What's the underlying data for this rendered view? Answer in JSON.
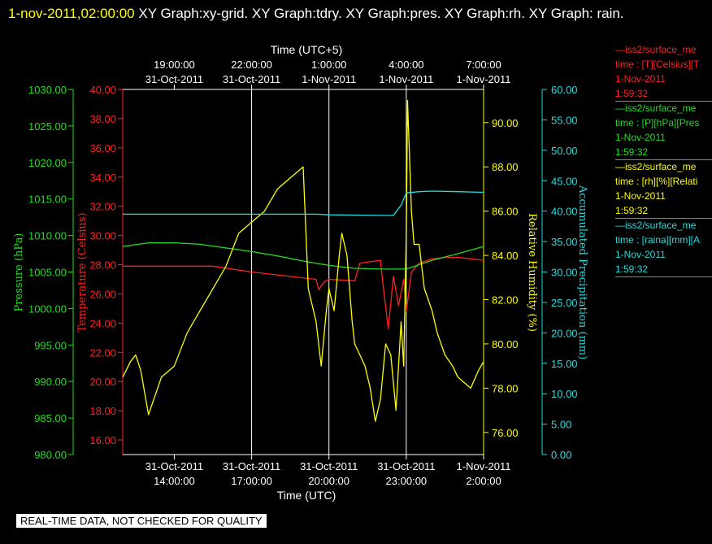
{
  "title": {
    "date": "1-nov-2011,02:00:00",
    "rest": " XY Graph:xy-grid.  XY Graph:tdry.  XY Graph:pres.  XY Graph:rh.  XY Graph: rain."
  },
  "notice": "REAL-TIME DATA, NOT CHECKED FOR QUALITY",
  "colors": {
    "temperature": "#ff2020",
    "pressure": "#22dd22",
    "rh": "#ffff00",
    "precip": "#22dddd",
    "grid": "#ffffff"
  },
  "legend": [
    {
      "line1": "—iss2/surface_me",
      "line2": "time : [T][Celsius][T",
      "line3": "1-Nov-2011",
      "line4": "1:59:32",
      "color": "#ff2020"
    },
    {
      "line1": "—iss2/surface_me",
      "line2": "time : [P][hPa][Pres",
      "line3": "1-Nov-2011",
      "line4": "1:59:32",
      "color": "#22dd22"
    },
    {
      "line1": "—iss2/surface_me",
      "line2": "time : [rh][%][Relati",
      "line3": "1-Nov-2011",
      "line4": "1:59:32",
      "color": "#ffff00"
    },
    {
      "line1": "—iss2/surface_me",
      "line2": "time : [raina][mm][A",
      "line3": "1-Nov-2011",
      "line4": "1:59:32",
      "color": "#22dddd"
    }
  ],
  "chart_data": {
    "type": "line",
    "xlabel_bottom": "Time (UTC)",
    "xlabel_top": "Time (UTC+5)",
    "x_range_hours": [
      12.0,
      26.0
    ],
    "x_ticks_bottom": [
      {
        "h": 14,
        "date": "31-Oct-2011",
        "time": "14:00:00"
      },
      {
        "h": 17,
        "date": "31-Oct-2011",
        "time": "17:00:00"
      },
      {
        "h": 20,
        "date": "31-Oct-2011",
        "time": "20:00:00"
      },
      {
        "h": 23,
        "date": "31-Oct-2011",
        "time": "23:00:00"
      },
      {
        "h": 26,
        "date": "1-Nov-2011",
        "time": "2:00:00"
      }
    ],
    "x_ticks_top": [
      {
        "h": 14,
        "time": "19:00:00",
        "date": "31-Oct-2011"
      },
      {
        "h": 17,
        "time": "22:00:00",
        "date": "31-Oct-2011"
      },
      {
        "h": 20,
        "time": "1:00:00",
        "date": "1-Nov-2011"
      },
      {
        "h": 23,
        "time": "4:00:00",
        "date": "1-Nov-2011"
      },
      {
        "h": 26,
        "time": "7:00:00",
        "date": "1-Nov-2011"
      }
    ],
    "axes": {
      "pressure": {
        "label": "Pressure (hPa)",
        "min": 980,
        "max": 1030,
        "ticks": [
          "980.00",
          "985.00",
          "990.00",
          "995.00",
          "1000.00",
          "1005.00",
          "1010.00",
          "1015.00",
          "1020.00",
          "1025.00",
          "1030.00"
        ]
      },
      "temperature": {
        "label": "Temperature (Celsius)",
        "min": 15,
        "max": 40,
        "ticks": [
          "16.00",
          "18.00",
          "20.00",
          "22.00",
          "24.00",
          "26.00",
          "28.00",
          "30.00",
          "32.00",
          "34.00",
          "36.00",
          "38.00",
          "40.00"
        ]
      },
      "rh": {
        "label": "Relative Humidity (%)",
        "min": 75,
        "max": 91.5,
        "ticks": [
          "76.00",
          "78.00",
          "80.00",
          "82.00",
          "84.00",
          "86.00",
          "88.00",
          "90.00"
        ]
      },
      "precip": {
        "label": "Accumulated Precipitation (mm)",
        "min": 0,
        "max": 60,
        "ticks": [
          "0.00",
          "5.00",
          "10.00",
          "15.00",
          "20.00",
          "25.00",
          "30.00",
          "35.00",
          "40.00",
          "45.00",
          "50.00",
          "55.00",
          "60.00"
        ]
      }
    },
    "series": [
      {
        "name": "Temperature",
        "axis": "temperature",
        "x": [
          12.0,
          14.0,
          15.5,
          17.0,
          18.5,
          19.5,
          19.6,
          19.8,
          20.0,
          21.0,
          21.2,
          22.0,
          22.1,
          22.3,
          22.5,
          22.7,
          22.9,
          23.0,
          23.2,
          23.5,
          24.0,
          24.5,
          25.0,
          25.5,
          26.0
        ],
        "y": [
          27.9,
          27.9,
          27.9,
          27.5,
          27.2,
          27.0,
          26.3,
          26.8,
          27.0,
          26.9,
          28.1,
          28.3,
          26.6,
          23.6,
          27.2,
          25.2,
          27.0,
          24.8,
          27.5,
          28.1,
          28.4,
          28.5,
          28.5,
          28.4,
          28.3
        ]
      },
      {
        "name": "Pressure",
        "axis": "pressure",
        "x": [
          12.0,
          13.0,
          14.0,
          15.0,
          16.0,
          17.0,
          18.0,
          19.0,
          20.0,
          21.0,
          22.0,
          23.0,
          23.5,
          24.0,
          25.0,
          26.0
        ],
        "y": [
          1008.5,
          1009.0,
          1009.0,
          1008.8,
          1008.3,
          1007.8,
          1007.2,
          1006.5,
          1005.9,
          1005.5,
          1005.4,
          1005.4,
          1006.0,
          1006.6,
          1007.5,
          1008.5
        ]
      },
      {
        "name": "Relative Humidity",
        "axis": "rh",
        "x": [
          12.0,
          12.3,
          12.5,
          12.7,
          13.0,
          13.5,
          14.0,
          14.5,
          15.0,
          15.5,
          16.0,
          16.5,
          17.0,
          17.5,
          18.0,
          18.5,
          19.0,
          19.2,
          19.3,
          19.5,
          19.7,
          19.9,
          20.0,
          20.2,
          20.4,
          20.5,
          20.7,
          20.9,
          21.0,
          21.2,
          21.4,
          21.6,
          21.8,
          22.0,
          22.2,
          22.4,
          22.6,
          22.8,
          22.9,
          23.0,
          23.05,
          23.2,
          23.3,
          23.5,
          23.7,
          24.0,
          24.2,
          24.5,
          24.8,
          25.0,
          25.3,
          25.5,
          25.8,
          26.0
        ],
        "y": [
          78.5,
          79.2,
          79.5,
          78.8,
          76.8,
          78.5,
          79.0,
          80.5,
          81.5,
          82.5,
          83.5,
          85.0,
          85.5,
          86.0,
          87.0,
          87.5,
          88.0,
          82.5,
          82.0,
          81.0,
          79.0,
          81.5,
          82.5,
          81.5,
          84.0,
          85.0,
          84.0,
          81.0,
          80.0,
          79.5,
          79.0,
          78.0,
          76.5,
          77.5,
          80.0,
          79.5,
          77.0,
          81.0,
          79.0,
          85.0,
          91.0,
          86.0,
          84.5,
          84.5,
          82.5,
          81.5,
          80.5,
          79.5,
          79.0,
          78.5,
          78.2,
          78.0,
          78.8,
          79.2
        ]
      },
      {
        "name": "Accumulated Precipitation",
        "axis": "precip",
        "x": [
          12.0,
          16.0,
          19.5,
          20.0,
          22.0,
          22.5,
          22.8,
          23.0,
          23.5,
          24.0,
          25.0,
          26.0
        ],
        "y": [
          39.5,
          39.5,
          39.5,
          39.4,
          39.3,
          39.3,
          41.0,
          43.0,
          43.2,
          43.3,
          43.2,
          43.1
        ]
      }
    ]
  }
}
